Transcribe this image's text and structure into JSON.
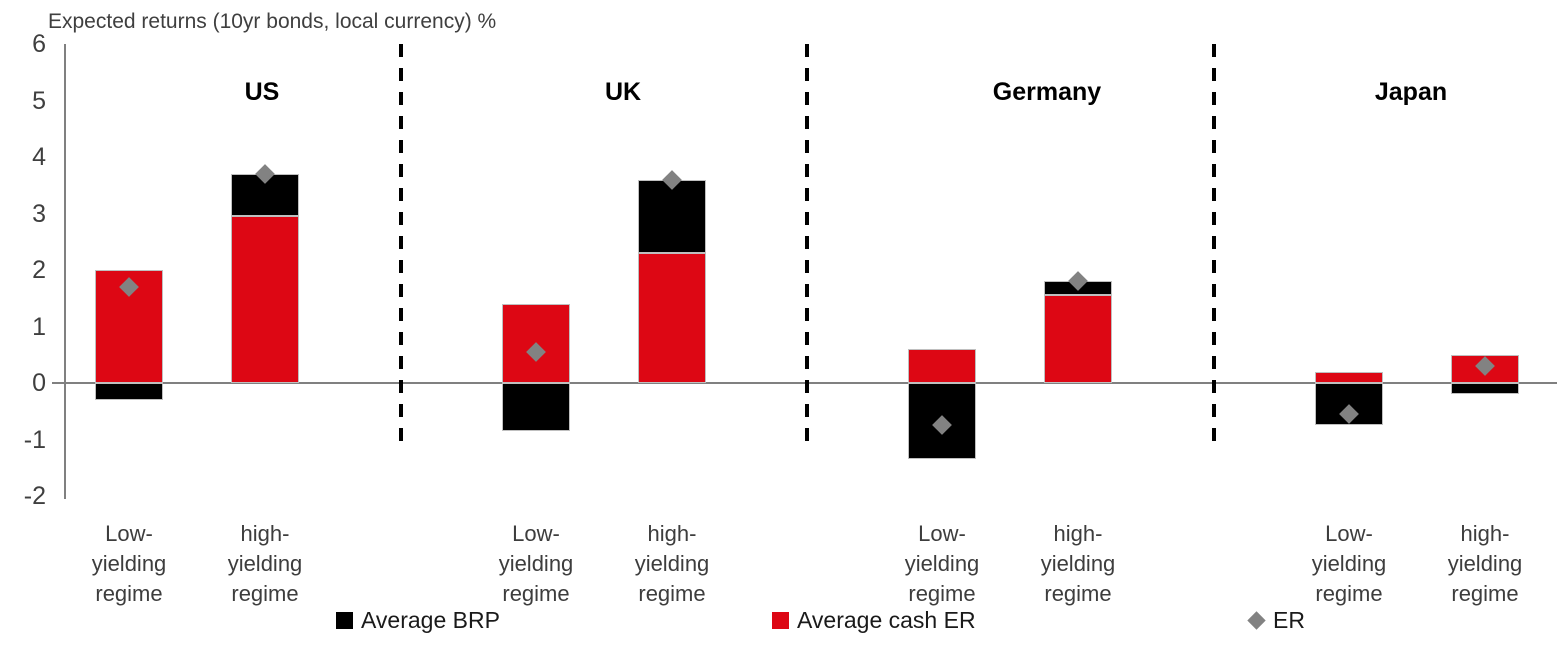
{
  "chart_data": {
    "type": "bar",
    "subtype": "stacked-columns-with-diamond-markers",
    "title": "Expected returns (10yr bonds, local currency) %",
    "y_axis": {
      "min": -2,
      "max": 6,
      "ticks": [
        6,
        5,
        4,
        3,
        2,
        1,
        0,
        -1,
        -2
      ]
    },
    "grid": "zero-line-only",
    "groups": [
      {
        "label": "US",
        "bars": [
          {
            "category_lines": [
              "Low-",
              "yielding",
              "regime"
            ],
            "average_brp": -0.3,
            "average_cash_er": 2.0,
            "er": 1.7
          },
          {
            "category_lines": [
              "high-",
              "yielding",
              "regime"
            ],
            "average_brp": 0.75,
            "average_cash_er": 2.95,
            "er": 3.7
          }
        ]
      },
      {
        "label": "UK",
        "bars": [
          {
            "category_lines": [
              "Low-",
              "yielding",
              "regime"
            ],
            "average_brp": -0.85,
            "average_cash_er": 1.4,
            "er": 0.55
          },
          {
            "category_lines": [
              "high-",
              "yielding",
              "regime"
            ],
            "average_brp": 1.3,
            "average_cash_er": 2.3,
            "er": 3.6
          }
        ]
      },
      {
        "label": "Germany",
        "bars": [
          {
            "category_lines": [
              "Low-",
              "yielding",
              "regime"
            ],
            "average_brp": -1.35,
            "average_cash_er": 0.6,
            "er": -0.75
          },
          {
            "category_lines": [
              "high-",
              "yielding",
              "regime"
            ],
            "average_brp": 0.25,
            "average_cash_er": 1.55,
            "er": 1.8
          }
        ]
      },
      {
        "label": "Japan",
        "bars": [
          {
            "category_lines": [
              "Low-",
              "yielding",
              "regime"
            ],
            "average_brp": -0.75,
            "average_cash_er": 0.2,
            "er": -0.55
          },
          {
            "category_lines": [
              "high-",
              "yielding",
              "regime"
            ],
            "average_brp": -0.2,
            "average_cash_er": 0.5,
            "er": 0.3
          }
        ]
      }
    ],
    "legend": [
      {
        "label": "Average BRP",
        "shape": "square",
        "color": "#000000"
      },
      {
        "label": "Average cash ER",
        "shape": "square",
        "color": "#dd0714"
      },
      {
        "label": "ER",
        "shape": "diamond",
        "color": "#828282"
      }
    ],
    "colors": {
      "average_brp": "#000000",
      "average_cash_er": "#dd0714",
      "er_marker": "#828282",
      "axis": "#808080",
      "separator": "#000000"
    },
    "legend_position": "bottom"
  }
}
